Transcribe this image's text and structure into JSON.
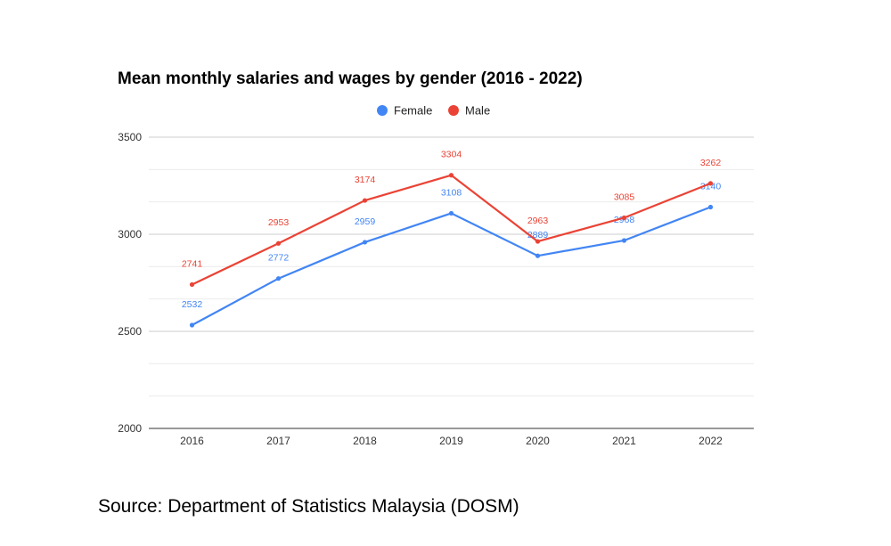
{
  "chart_data": {
    "type": "line",
    "title": "Mean monthly salaries and wages by gender (2016 - 2022)",
    "categories": [
      "2016",
      "2017",
      "2018",
      "2019",
      "2020",
      "2021",
      "2022"
    ],
    "series": [
      {
        "name": "Female",
        "color": "#4285f4",
        "values": [
          2532,
          2772,
          2959,
          3108,
          2889,
          2968,
          3140
        ]
      },
      {
        "name": "Male",
        "color": "#ea4335",
        "values": [
          2741,
          2953,
          3174,
          3304,
          2963,
          3085,
          3262
        ]
      }
    ],
    "ylim": [
      2000,
      3500
    ],
    "yticks": [
      2000,
      2500,
      3000,
      3500
    ],
    "xlabel": "",
    "ylabel": "",
    "legend": "top-center",
    "grid": true
  },
  "source_text": "Source: Department of Statistics Malaysia (DOSM)"
}
